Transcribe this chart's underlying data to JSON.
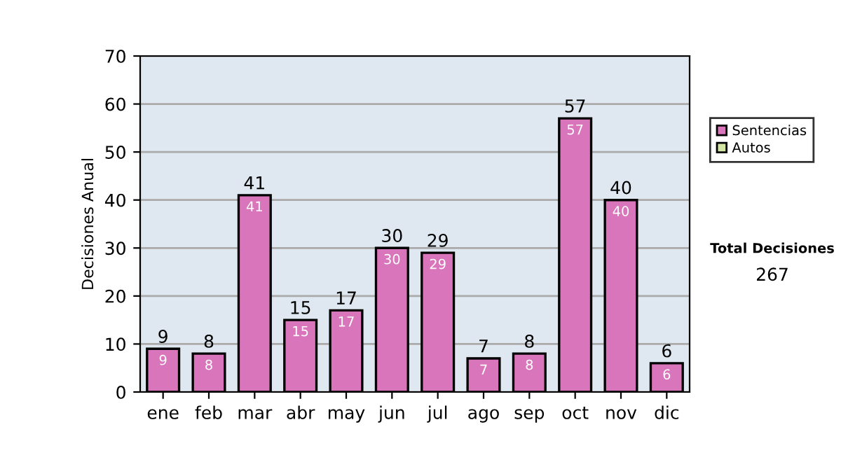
{
  "chart_data": {
    "type": "bar",
    "ylabel": "Decisiones Anual",
    "categories": [
      "ene",
      "feb",
      "mar",
      "abr",
      "may",
      "jun",
      "jul",
      "ago",
      "sep",
      "oct",
      "nov",
      "dic"
    ],
    "series": [
      {
        "name": "Sentencias",
        "color": "#d975bb",
        "values": [
          9,
          8,
          41,
          15,
          17,
          30,
          29,
          7,
          8,
          57,
          40,
          6
        ],
        "value_labels": [
          "9",
          "8",
          "41",
          "15",
          "17",
          "30",
          "29",
          "7",
          "8",
          "57",
          "40",
          "6"
        ]
      },
      {
        "name": "Autos",
        "color": "#d4e6a5",
        "values": [
          null,
          null,
          null,
          null,
          null,
          null,
          null,
          null,
          null,
          null,
          null,
          null
        ]
      }
    ],
    "stacked": true,
    "totals": [
      "9",
      "8",
      "41",
      "15",
      "17",
      "30",
      "29",
      "7",
      "8",
      "57",
      "40",
      "6"
    ],
    "ylim": [
      0,
      70
    ],
    "yticks": [
      0,
      10,
      20,
      30,
      40,
      50,
      60,
      70
    ],
    "grid": "y",
    "legend": "right",
    "annotations": [
      "Total Decisiones",
      "267"
    ]
  }
}
